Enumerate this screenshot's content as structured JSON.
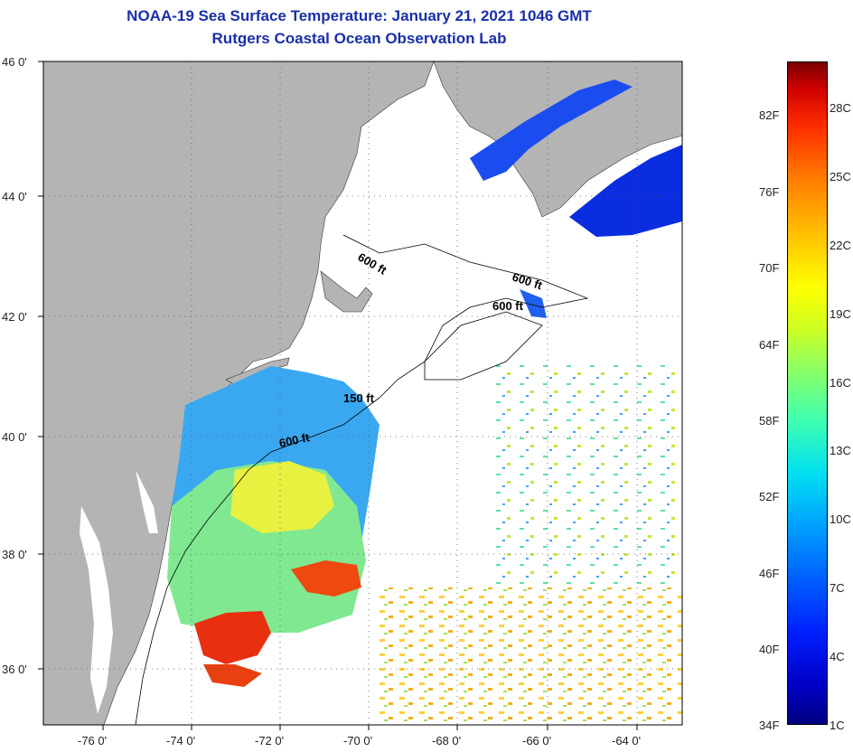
{
  "header": {
    "title": "NOAA-19 Sea Surface Temperature:  January 21, 2021 1046 GMT",
    "subtitle": "Rutgers Coastal Ocean Observation Lab"
  },
  "axes": {
    "lat_labels": [
      "46 0'",
      "44 0'",
      "42 0'",
      "40 0'",
      "38 0'",
      "36 0'"
    ],
    "lon_labels": [
      "-76 0'",
      "-74 0'",
      "-72 0'",
      "-70 0'",
      "-68 0'",
      "-66 0'",
      "-64 0'"
    ]
  },
  "contours": {
    "a": "600 ft",
    "b": "600 ft",
    "c": "600 ft",
    "d": "150 ft",
    "e": "600 ft"
  },
  "colorbar": {
    "fahrenheit": [
      "82F",
      "76F",
      "70F",
      "64F",
      "58F",
      "52F",
      "46F",
      "40F",
      "34F"
    ],
    "celsius": [
      "28C",
      "25C",
      "22C",
      "19C",
      "16C",
      "13C",
      "10C",
      "7C",
      "4C",
      "1C"
    ]
  },
  "colors": {
    "land": "#b4b4b4",
    "title": "#1a2fa8",
    "warm": "#e83010",
    "cold": "#0030e0"
  }
}
